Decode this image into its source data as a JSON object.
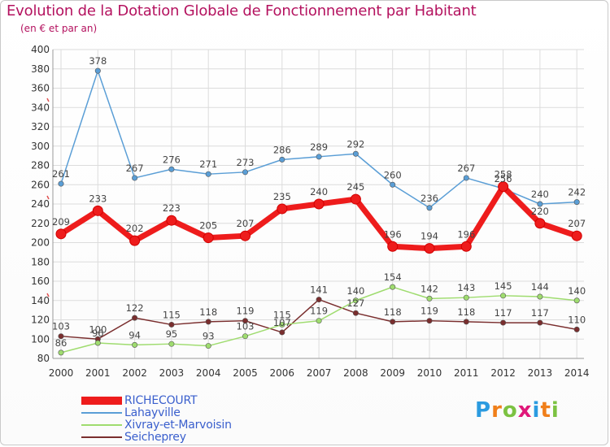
{
  "title": "Evolution de la Dotation Globale de Fonctionnement par Habitant",
  "subtitle": "(en € et par an)",
  "logo": {
    "text": "Proxiti",
    "colors": [
      "#2b9be0",
      "#f07f1a",
      "#7cc242",
      "#e0187a",
      "#2b9be0",
      "#f07f1a",
      "#7cc242"
    ]
  },
  "chart_data": {
    "type": "line",
    "x": [
      2000,
      2001,
      2002,
      2003,
      2004,
      2005,
      2006,
      2007,
      2008,
      2009,
      2010,
      2011,
      2012,
      2013,
      2014
    ],
    "ylim": [
      80,
      400
    ],
    "yticks": [
      80,
      100,
      120,
      140,
      160,
      180,
      200,
      220,
      240,
      260,
      280,
      300,
      320,
      340,
      360,
      380,
      400
    ],
    "grid": true,
    "legend_position": "bottom-left",
    "series": [
      {
        "name": "RICHECOURT",
        "color": "#ee1c1c",
        "values": [
          209,
          233,
          202,
          223,
          205,
          207,
          235,
          240,
          245,
          196,
          194,
          196,
          258,
          220,
          207
        ],
        "labels": [
          "209",
          "233",
          "202",
          "223",
          "205",
          "207",
          "235",
          "240",
          "245",
          "196",
          "194",
          "196",
          "258",
          "220",
          "207"
        ]
      },
      {
        "name": "Lahayville",
        "color": "#5a9ed6",
        "values": [
          261,
          378,
          267,
          276,
          271,
          273,
          286,
          289,
          292,
          260,
          236,
          267,
          256,
          240,
          242
        ],
        "labels": [
          "261",
          "378",
          "267",
          "276",
          "271",
          "273",
          "286",
          "289",
          "292",
          "260",
          "236",
          "267",
          "256",
          "240",
          "242"
        ]
      },
      {
        "name": "Xivray-et-Marvoisin",
        "color": "#9fdc6f",
        "values": [
          86,
          96,
          94,
          95,
          93,
          103,
          115,
          119,
          140,
          154,
          142,
          143,
          145,
          144,
          140
        ],
        "labels": [
          "86",
          "96",
          "94",
          "95",
          "93",
          "103",
          "115",
          "119",
          "140",
          "154",
          "142",
          "143",
          "145",
          "144",
          "140"
        ]
      },
      {
        "name": "Seicheprey",
        "color": "#7a2e2e",
        "values": [
          103,
          100,
          122,
          115,
          118,
          119,
          107,
          141,
          127,
          118,
          119,
          118,
          117,
          117,
          110
        ],
        "labels": [
          "103",
          "100",
          "122",
          "115",
          "118",
          "119",
          "107",
          "141",
          "127",
          "118",
          "119",
          "118",
          "117",
          "117",
          "110"
        ]
      }
    ]
  }
}
